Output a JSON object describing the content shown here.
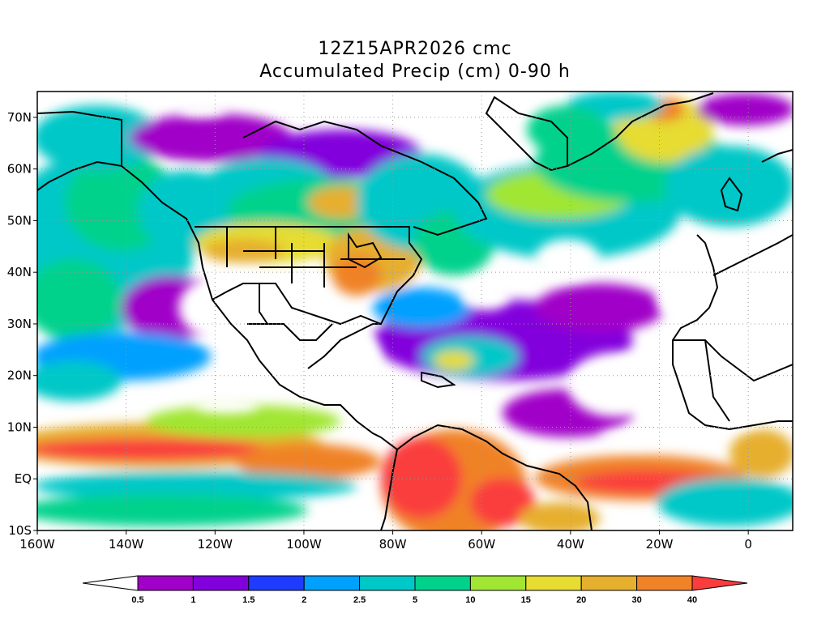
{
  "title": {
    "line1": "12Z15APR2026 cmc",
    "line2": "Accumulated Precip (cm) 0-90 h"
  },
  "map": {
    "lon_range": [
      -160,
      10
    ],
    "lat_range": [
      -10,
      75
    ],
    "lon_ticks": [
      {
        "value": -160,
        "label": "160W"
      },
      {
        "value": -140,
        "label": "140W"
      },
      {
        "value": -120,
        "label": "120W"
      },
      {
        "value": -100,
        "label": "100W"
      },
      {
        "value": -80,
        "label": "80W"
      },
      {
        "value": -60,
        "label": "60W"
      },
      {
        "value": -40,
        "label": "40W"
      },
      {
        "value": -20,
        "label": "20W"
      },
      {
        "value": 0,
        "label": "0"
      }
    ],
    "lat_ticks": [
      {
        "value": 70,
        "label": "70N"
      },
      {
        "value": 60,
        "label": "60N"
      },
      {
        "value": 50,
        "label": "50N"
      },
      {
        "value": 40,
        "label": "40N"
      },
      {
        "value": 30,
        "label": "30N"
      },
      {
        "value": 20,
        "label": "20N"
      },
      {
        "value": 10,
        "label": "10N"
      },
      {
        "value": 0,
        "label": "EQ"
      },
      {
        "value": -10,
        "label": "10S"
      }
    ]
  },
  "colorbar": {
    "levels": [
      "0.5",
      "1",
      "1.5",
      "2",
      "2.5",
      "5",
      "10",
      "15",
      "20",
      "30",
      "40"
    ],
    "colors": [
      "#ffffff",
      "#a000c8",
      "#8200dc",
      "#1e3cff",
      "#00a0ff",
      "#00c8c8",
      "#00d28c",
      "#a0e632",
      "#e6dc32",
      "#e6af2d",
      "#f08228",
      "#fa3c3c"
    ]
  }
}
